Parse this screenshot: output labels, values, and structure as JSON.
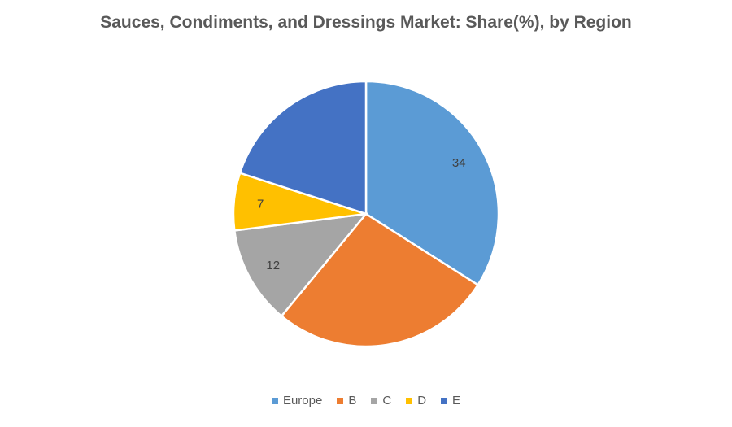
{
  "chart_data": {
    "type": "pie",
    "title": "Sauces, Condiments, and Dressings Market: Share(%), by Region",
    "categories": [
      "Europe",
      "B",
      "C",
      "D",
      "E"
    ],
    "values": [
      34,
      27,
      12,
      7,
      20
    ],
    "data_labels": [
      "34",
      "",
      "12",
      "7",
      ""
    ],
    "colors": [
      "#5B9BD5",
      "#ED7D31",
      "#A5A5A5",
      "#FFC000",
      "#4472C4"
    ],
    "legend_position": "bottom",
    "start_angle_deg": 0,
    "direction": "clockwise"
  },
  "legend": [
    {
      "label": "Europe",
      "color": "#5B9BD5"
    },
    {
      "label": "B",
      "color": "#ED7D31"
    },
    {
      "label": "C",
      "color": "#A5A5A5"
    },
    {
      "label": "D",
      "color": "#FFC000"
    },
    {
      "label": "E",
      "color": "#4472C4"
    }
  ]
}
